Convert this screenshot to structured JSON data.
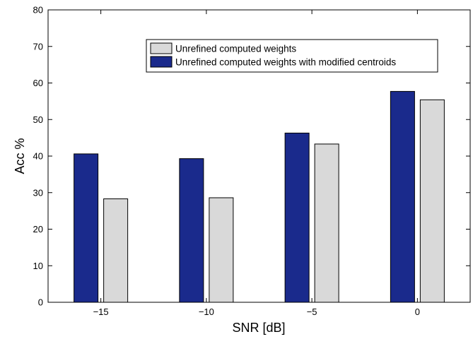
{
  "chart_data": {
    "type": "bar",
    "title": "",
    "xlabel": "SNR [dB]",
    "ylabel": "Acc %",
    "categories": [
      "−15",
      "−10",
      "−5",
      "0"
    ],
    "ylim": [
      0,
      80
    ],
    "yticks": [
      "0",
      "10",
      "20",
      "30",
      "40",
      "50",
      "60",
      "70",
      "80"
    ],
    "series": [
      {
        "name": "Unrefined computed weights with modified centroids",
        "color": "#1a2a8c",
        "values": [
          40.6,
          39.3,
          46.3,
          57.7
        ]
      },
      {
        "name": "Unrefined computed weights",
        "color": "#d9d9d9",
        "values": [
          28.3,
          28.6,
          43.3,
          55.4
        ]
      }
    ],
    "legend": {
      "position": "top-center",
      "order": [
        "Unrefined computed weights",
        "Unrefined computed weights with modified centroids"
      ]
    },
    "grid": false
  }
}
